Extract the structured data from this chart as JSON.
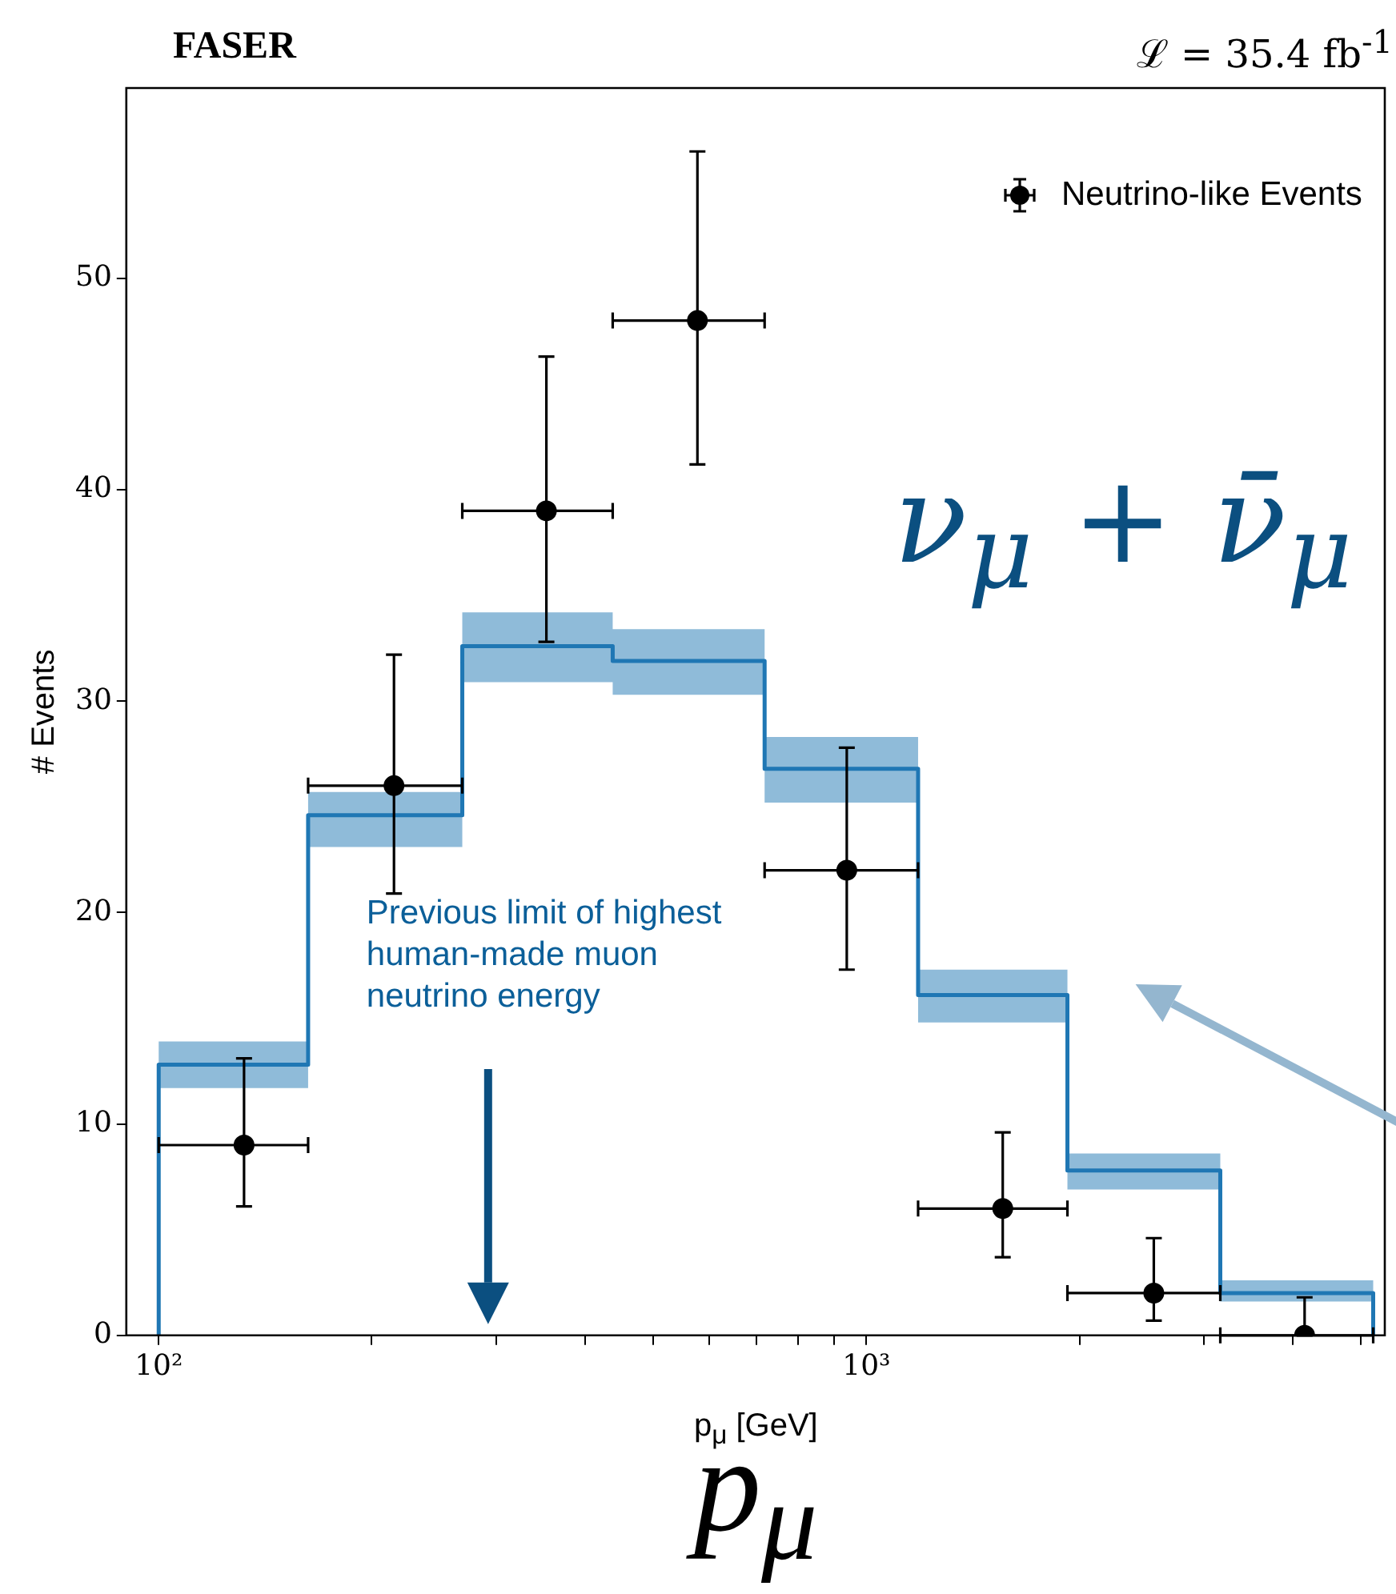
{
  "chart_data": {
    "type": "step",
    "title": "FASER",
    "subtitle": "ℒ = 35.4 fb$^{-1}$",
    "xlabel": "p$_{μ}$ [GeV]",
    "ylabel": "# Events",
    "series": [
      {
        "color": "#1f77b4",
        "marker": "none",
        "x": [
          100,
          100,
          162.6,
          268.5,
          438,
          718,
          1183,
          1923,
          3162,
          5200,
          5200
        ],
        "values": [
          0,
          12.8,
          24.6,
          32.6,
          31.9,
          26.8,
          16.1,
          7.8,
          2.0,
          2.0,
          0
        ],
        "lower": [
          null,
          11.7,
          23.1,
          30.9,
          30.3,
          25.2,
          14.8,
          6.9,
          1.6,
          1.6,
          null
        ],
        "upper": [
          null,
          13.9,
          25.7,
          34.2,
          33.4,
          28.3,
          17.3,
          8.6,
          2.6,
          2.6,
          null
        ]
      },
      {
        "type": "scatter",
        "name": "Neutrino-like Events",
        "color": "#000000",
        "marker": "circle",
        "x": [
          132,
          215,
          353,
          577,
          938,
          1558,
          2547,
          4160
        ],
        "values": [
          9,
          26,
          39,
          48,
          22,
          6,
          2,
          0
        ],
        "errors": [
          [
            6.1,
            13.1
          ],
          [
            20.9,
            32.2
          ],
          [
            32.8,
            46.3
          ],
          [
            41.2,
            56.0
          ],
          [
            17.3,
            27.8
          ],
          [
            3.7,
            9.6
          ],
          [
            0.7,
            4.6
          ],
          [
            0,
            1.8
          ]
        ],
        "xerrors": [
          [
            100,
            162.6
          ],
          [
            162.6,
            268.5
          ],
          [
            268.5,
            438
          ],
          [
            438,
            718
          ],
          [
            718,
            1183
          ],
          [
            1183,
            1923
          ],
          [
            1923,
            3162
          ],
          [
            3162,
            5200
          ]
        ]
      }
    ],
    "log": "x",
    "xlim": [
      90,
      5400
    ],
    "ylim": [
      0,
      59
    ],
    "xticks": [
      {
        "value": 100,
        "label": "10²"
      },
      {
        "value": 200,
        "label": null
      },
      {
        "value": 300,
        "label": null
      },
      {
        "value": 400,
        "label": null
      },
      {
        "value": 500,
        "label": null
      },
      {
        "value": 600,
        "label": null
      },
      {
        "value": 700,
        "label": null
      },
      {
        "value": 800,
        "label": null
      },
      {
        "value": 900,
        "label": null
      },
      {
        "value": 1000,
        "label": "10³"
      },
      {
        "value": 2000,
        "label": null
      },
      {
        "value": 3000,
        "label": null
      },
      {
        "value": 4000,
        "label": null
      },
      {
        "value": 5000,
        "label": null
      }
    ],
    "yticks": [
      0,
      10,
      20,
      30,
      40,
      50
    ],
    "grid": false,
    "legend": "top right",
    "annotations": [
      "ν$_{μ}$ + ν̄$_{μ}$",
      "Previous limit of highest human-made muon neutrino energy",
      "p$_{μ}$"
    ]
  }
}
